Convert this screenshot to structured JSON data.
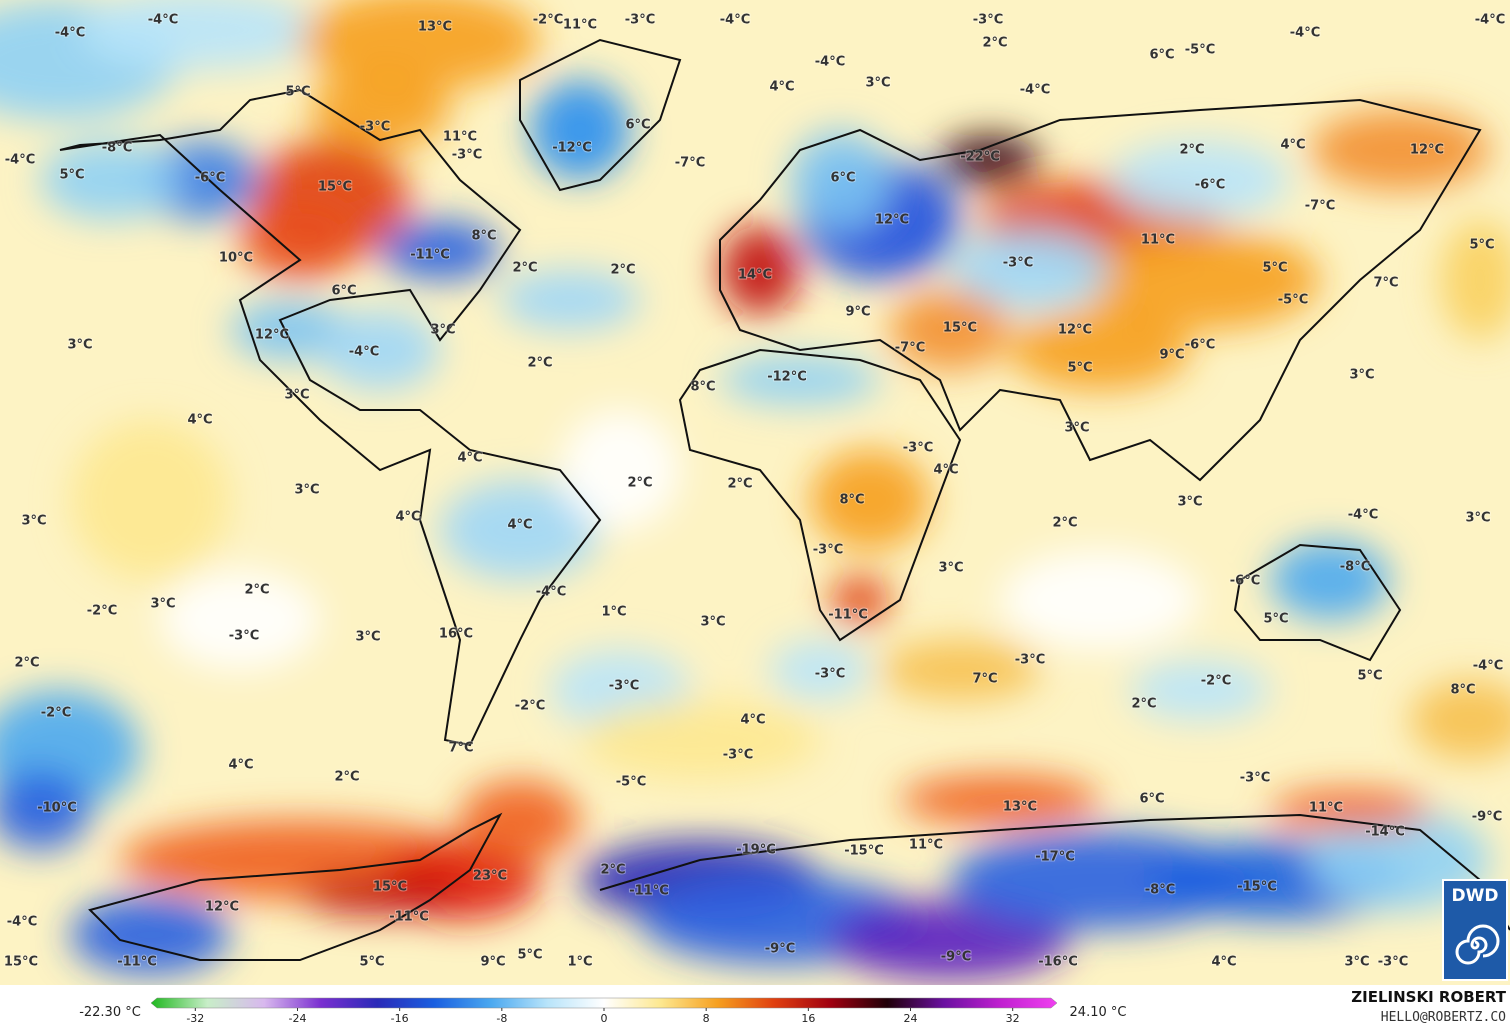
{
  "map": {
    "labels": [
      "-4°C",
      "-4°C",
      "13°C",
      "-2°C",
      "11°C",
      "-3°C",
      "-4°C",
      "-3°C",
      "2°C",
      "6°C",
      "-5°C",
      "-4°C",
      "-4°C",
      "5°C",
      "-3°C",
      "-4°C",
      "3°C",
      "4°C",
      "-4°C",
      "6°C",
      "11°C",
      "-3°C",
      "-12°C",
      "-7°C",
      "-22°C",
      "2°C",
      "4°C",
      "12°C",
      "-8°C",
      "-4°C",
      "5°C",
      "-6°C",
      "15°C",
      "-6°C",
      "6°C",
      "12°C",
      "-7°C",
      "11°C",
      "5°C",
      "8°C",
      "-11°C",
      "10°C",
      "2°C",
      "2°C",
      "-3°C",
      "5°C",
      "14°C",
      "7°C",
      "6°C",
      "-5°C",
      "9°C",
      "15°C",
      "12°C",
      "12°C",
      "3°C",
      "3°C",
      "-4°C",
      "-6°C",
      "2°C",
      "9°C",
      "-7°C",
      "5°C",
      "-12°C",
      "3°C",
      "8°C",
      "3°C",
      "4°C",
      "3°C",
      "-3°C",
      "4°C",
      "4°C",
      "2°C",
      "2°C",
      "3°C",
      "8°C",
      "3°C",
      "4°C",
      "4°C",
      "2°C",
      "-4°C",
      "3°C",
      "3°C",
      "-3°C",
      "3°C",
      "-8°C",
      "2°C",
      "-6°C",
      "-4°C",
      "-2°C",
      "3°C",
      "1°C",
      "-11°C",
      "5°C",
      "3°C",
      "16°C",
      "-3°C",
      "3°C",
      "2°C",
      "-3°C",
      "-3°C",
      "7°C",
      "-2°C",
      "-3°C",
      "5°C",
      "-4°C",
      "8°C",
      "-2°C",
      "2°C",
      "-2°C",
      "4°C",
      "7°C",
      "-3°C",
      "4°C",
      "2°C",
      "-3°C",
      "-5°C",
      "6°C",
      "13°C",
      "11°C",
      "-9°C",
      "-10°C",
      "-14°C",
      "-19°C",
      "-15°C",
      "11°C",
      "-17°C",
      "23°C",
      "2°C",
      "15°C",
      "-11°C",
      "-8°C",
      "-15°C",
      "12°C",
      "-11°C",
      "-4°C",
      "-9°C",
      "-9°C",
      "15°C",
      "-11°C",
      "5°C",
      "9°C",
      "5°C",
      "1°C",
      "-16°C",
      "4°C",
      "3°C",
      "-3°C"
    ]
  },
  "colorbar": {
    "min_label": "-22.30 °C",
    "max_label": "24.10 °C",
    "lim": [
      -35,
      35
    ],
    "ticks": [
      -32,
      -24,
      -16,
      -8,
      0,
      8,
      16,
      24,
      32
    ],
    "colors": [
      "#1fb81f",
      "#c8eec8",
      "#d8b8ee",
      "#7a2fd0",
      "#2a2ab8",
      "#1a5fe0",
      "#4aa8f0",
      "#b8e4fa",
      "#ffffff",
      "#fde890",
      "#f6a020",
      "#e04010",
      "#a00010",
      "#200008",
      "#6a10a0",
      "#c020d0",
      "#f040f0"
    ]
  },
  "credit": {
    "author": "ZIELINSKI ROBERT",
    "contact": "HELLO@ROBERTZ.CO",
    "logo": "DWD"
  }
}
